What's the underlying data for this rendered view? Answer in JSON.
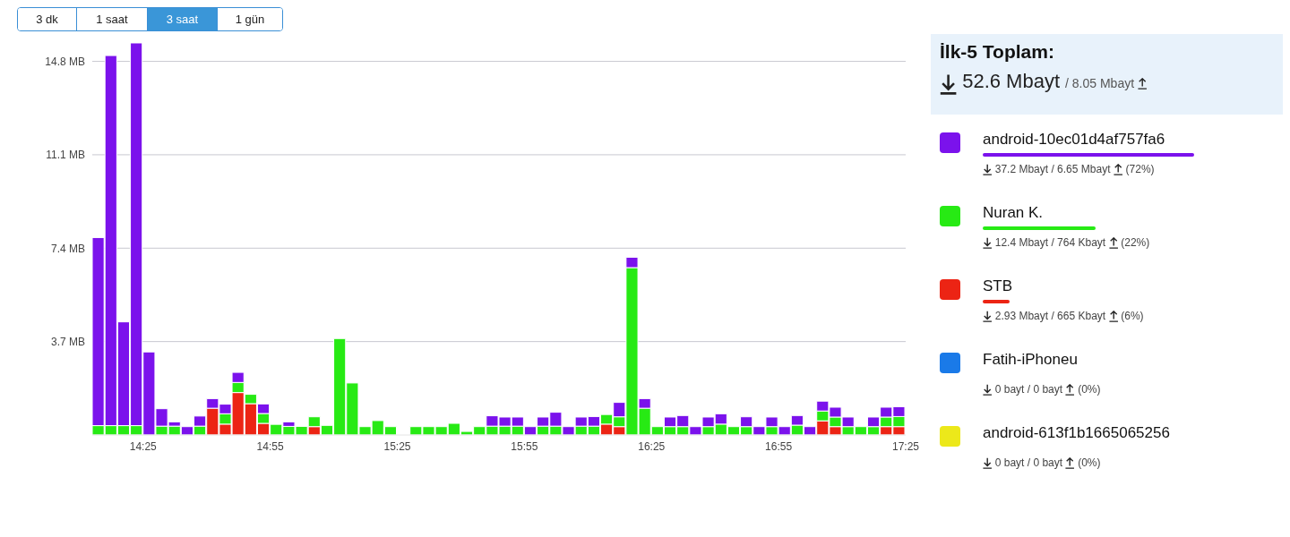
{
  "chart_data": {
    "type": "bar",
    "stacked": true,
    "grid": "y",
    "legend": "right",
    "x": [
      14.2417,
      14.2917,
      14.3417,
      14.3917,
      14.4417,
      14.4917,
      14.5417,
      14.5917,
      14.6417,
      14.6917,
      14.7417,
      14.7917,
      14.8417,
      14.8917,
      14.9417,
      14.9917,
      15.0417,
      15.0917,
      15.1417,
      15.1917,
      15.2417,
      15.2917,
      15.3417,
      15.3917,
      15.4417,
      15.4917,
      15.5417,
      15.5917,
      15.6417,
      15.6917,
      15.7417,
      15.7917,
      15.8417,
      15.8917,
      15.9417,
      15.9917,
      16.0417,
      16.0917,
      16.1417,
      16.1917,
      16.2417,
      16.2917,
      16.3417,
      16.3917,
      16.4417,
      16.4917,
      16.5417,
      16.5917,
      16.6417,
      16.6917,
      16.7417,
      16.7917,
      16.8417,
      16.8917,
      16.9417,
      16.9917,
      17.0417,
      17.0917,
      17.1417,
      17.1917,
      17.2417,
      17.2917,
      17.3417,
      17.3917
    ],
    "xlim": [
      14.2167,
      17.4167
    ],
    "xticks": [
      {
        "value": 14.4167,
        "label": "14:25"
      },
      {
        "value": 14.9167,
        "label": "14:55"
      },
      {
        "value": 15.4167,
        "label": "15:25"
      },
      {
        "value": 15.9167,
        "label": "15:55"
      },
      {
        "value": 16.4167,
        "label": "16:25"
      },
      {
        "value": 16.9167,
        "label": "16:55"
      },
      {
        "value": 17.4167,
        "label": "17:25"
      }
    ],
    "ylim": [
      0,
      15.6
    ],
    "yticks": [
      {
        "value": 3.7,
        "label": "3.7 MB"
      },
      {
        "value": 7.4,
        "label": "7.4 MB"
      },
      {
        "value": 11.1,
        "label": "11.1 MB"
      },
      {
        "value": 14.8,
        "label": "14.8 MB"
      }
    ],
    "series": [
      {
        "name": "STB",
        "color": "#ec2414",
        "values": [
          0,
          0,
          0,
          0,
          0,
          0,
          0,
          0,
          0,
          1.06,
          0.43,
          1.68,
          1.24,
          0.46,
          0,
          0,
          0,
          0.33,
          0,
          0,
          0,
          0,
          0,
          0,
          0,
          0,
          0,
          0,
          0,
          0,
          0,
          0,
          0,
          0,
          0,
          0,
          0,
          0,
          0,
          0,
          0.43,
          0.33,
          0,
          0,
          0,
          0,
          0,
          0,
          0,
          0,
          0,
          0,
          0,
          0,
          0,
          0,
          0,
          0.56,
          0.33,
          0,
          0,
          0,
          0.33,
          0.33
        ]
      },
      {
        "name": "Nuran K.",
        "color": "#27ea14",
        "values": [
          0.37,
          0.37,
          0.37,
          0.37,
          0,
          0.35,
          0.35,
          0,
          0.35,
          0,
          0.41,
          0.4,
          0.37,
          0.39,
          0.42,
          0.34,
          0.34,
          0.39,
          0.38,
          3.82,
          2.06,
          0.33,
          0.57,
          0.33,
          0,
          0.33,
          0.33,
          0.33,
          0.46,
          0.14,
          0.33,
          0.35,
          0.35,
          0.35,
          0,
          0.35,
          0.35,
          0,
          0.35,
          0.35,
          0.38,
          0.39,
          6.63,
          1.06,
          0.33,
          0.33,
          0.33,
          0,
          0.33,
          0.43,
          0.33,
          0.33,
          0,
          0.33,
          0,
          0.39,
          0,
          0.39,
          0.38,
          0.33,
          0.33,
          0.33,
          0.38,
          0.4
        ]
      },
      {
        "name": "android-10ec01d4af757fa6",
        "color": "#7b12ec",
        "values": [
          7.45,
          14.66,
          4.11,
          15.16,
          3.29,
          0.69,
          0.17,
          0.33,
          0.4,
          0.38,
          0.38,
          0.4,
          0,
          0.38,
          0,
          0.18,
          0,
          0,
          0,
          0,
          0,
          0,
          0,
          0,
          0,
          0,
          0,
          0,
          0,
          0,
          0,
          0.41,
          0.36,
          0.36,
          0.33,
          0.36,
          0.55,
          0.33,
          0.36,
          0.38,
          0,
          0.57,
          0.41,
          0.38,
          0,
          0.38,
          0.44,
          0.33,
          0.38,
          0.41,
          0,
          0.39,
          0.33,
          0.38,
          0.33,
          0.38,
          0.33,
          0.39,
          0.39,
          0.38,
          0,
          0.38,
          0.39,
          0.39
        ]
      },
      {
        "name": "Fatih-iPhoneu",
        "color": "#1a7ae8",
        "values": [
          0,
          0,
          0,
          0,
          0,
          0,
          0,
          0,
          0,
          0,
          0,
          0,
          0,
          0,
          0,
          0,
          0,
          0,
          0,
          0,
          0,
          0,
          0,
          0,
          0,
          0,
          0,
          0,
          0,
          0,
          0,
          0,
          0,
          0,
          0,
          0,
          0,
          0,
          0,
          0,
          0,
          0,
          0,
          0,
          0,
          0,
          0,
          0,
          0,
          0,
          0,
          0,
          0,
          0,
          0,
          0,
          0,
          0,
          0,
          0,
          0,
          0,
          0,
          0
        ]
      },
      {
        "name": "android-613f1b1665065256",
        "color": "#ece81a",
        "values": [
          0,
          0,
          0,
          0,
          0,
          0,
          0,
          0,
          0,
          0,
          0,
          0,
          0,
          0,
          0,
          0,
          0,
          0,
          0,
          0,
          0,
          0,
          0,
          0,
          0,
          0,
          0,
          0,
          0,
          0,
          0,
          0,
          0,
          0,
          0,
          0,
          0,
          0,
          0,
          0,
          0,
          0,
          0,
          0,
          0,
          0,
          0,
          0,
          0,
          0,
          0,
          0,
          0,
          0,
          0,
          0,
          0,
          0,
          0,
          0,
          0,
          0,
          0,
          0
        ]
      }
    ],
    "annotations": [
      "3 dk",
      "1 saat",
      "3 saat",
      "1 gün",
      "İlk-5 Toplam:",
      "52.6 Mbayt",
      "/ 8.05 Mbayt",
      "37.2 Mbayt / 6.65 Mbayt",
      "(72%)",
      "12.4 Mbayt / 764 Kbayt",
      "(22%)",
      "2.93 Mbayt / 665 Kbayt",
      "(6%)",
      "0 bayt / 0 bayt",
      "(0%)",
      "0 bayt / 0 bayt",
      "(0%)"
    ]
  }
}
